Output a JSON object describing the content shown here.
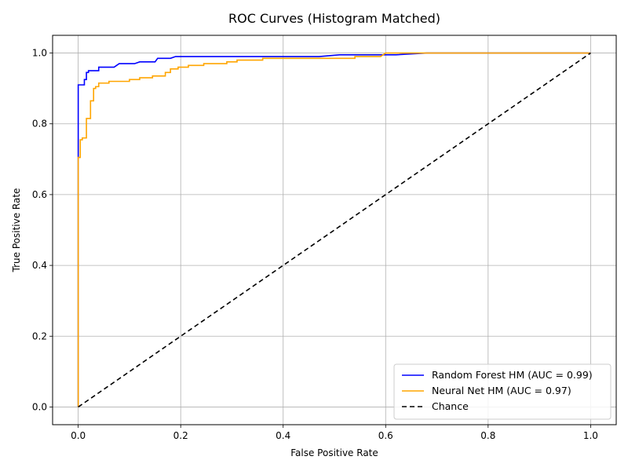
{
  "chart_data": {
    "type": "line",
    "title": "ROC Curves (Histogram Matched)",
    "xlabel": "False Positive Rate",
    "ylabel": "True Positive Rate",
    "xlim": [
      -0.05,
      1.05
    ],
    "ylim": [
      -0.05,
      1.05
    ],
    "xticks": [
      0.0,
      0.2,
      0.4,
      0.6,
      0.8,
      1.0
    ],
    "xtick_labels": [
      "0.0",
      "0.2",
      "0.4",
      "0.6",
      "0.8",
      "1.0"
    ],
    "yticks": [
      0.0,
      0.2,
      0.4,
      0.6,
      0.8,
      1.0
    ],
    "ytick_labels": [
      "0.0",
      "0.2",
      "0.4",
      "0.6",
      "0.8",
      "1.0"
    ],
    "grid": true,
    "legend_position": "lower-right",
    "series": [
      {
        "name": "Random Forest HM (AUC = 0.99)",
        "color": "#0000ff",
        "style": "solid",
        "x": [
          0.0,
          0.0,
          0.0,
          0.0,
          0.012,
          0.012,
          0.016,
          0.016,
          0.02,
          0.02,
          0.04,
          0.04,
          0.07,
          0.08,
          0.11,
          0.12,
          0.15,
          0.155,
          0.18,
          0.19,
          0.47,
          0.51,
          0.59,
          0.62,
          0.68,
          1.0
        ],
        "y": [
          0.0,
          0.71,
          0.71,
          0.91,
          0.91,
          0.925,
          0.925,
          0.945,
          0.945,
          0.95,
          0.95,
          0.96,
          0.96,
          0.97,
          0.97,
          0.975,
          0.975,
          0.985,
          0.985,
          0.99,
          0.99,
          0.995,
          0.995,
          0.995,
          1.0,
          1.0
        ]
      },
      {
        "name": "Neural Net HM (AUC = 0.97)",
        "color": "#ffa500",
        "style": "solid",
        "x": [
          0.0,
          0.0,
          0.004,
          0.004,
          0.008,
          0.008,
          0.016,
          0.016,
          0.024,
          0.024,
          0.03,
          0.03,
          0.034,
          0.034,
          0.04,
          0.04,
          0.06,
          0.06,
          0.1,
          0.1,
          0.12,
          0.12,
          0.145,
          0.145,
          0.17,
          0.17,
          0.18,
          0.18,
          0.195,
          0.195,
          0.215,
          0.215,
          0.245,
          0.245,
          0.29,
          0.29,
          0.31,
          0.31,
          0.36,
          0.36,
          0.54,
          0.54,
          0.59,
          0.6,
          1.0
        ],
        "y": [
          0.0,
          0.705,
          0.705,
          0.755,
          0.755,
          0.76,
          0.76,
          0.815,
          0.815,
          0.865,
          0.865,
          0.9,
          0.9,
          0.905,
          0.905,
          0.915,
          0.915,
          0.92,
          0.92,
          0.925,
          0.925,
          0.93,
          0.93,
          0.935,
          0.935,
          0.945,
          0.945,
          0.955,
          0.955,
          0.96,
          0.96,
          0.965,
          0.965,
          0.97,
          0.97,
          0.975,
          0.975,
          0.98,
          0.98,
          0.985,
          0.985,
          0.99,
          0.99,
          1.0,
          1.0
        ]
      },
      {
        "name": "Chance",
        "color": "#000000",
        "style": "dashed",
        "x": [
          0.0,
          1.0
        ],
        "y": [
          0.0,
          1.0
        ]
      }
    ]
  }
}
